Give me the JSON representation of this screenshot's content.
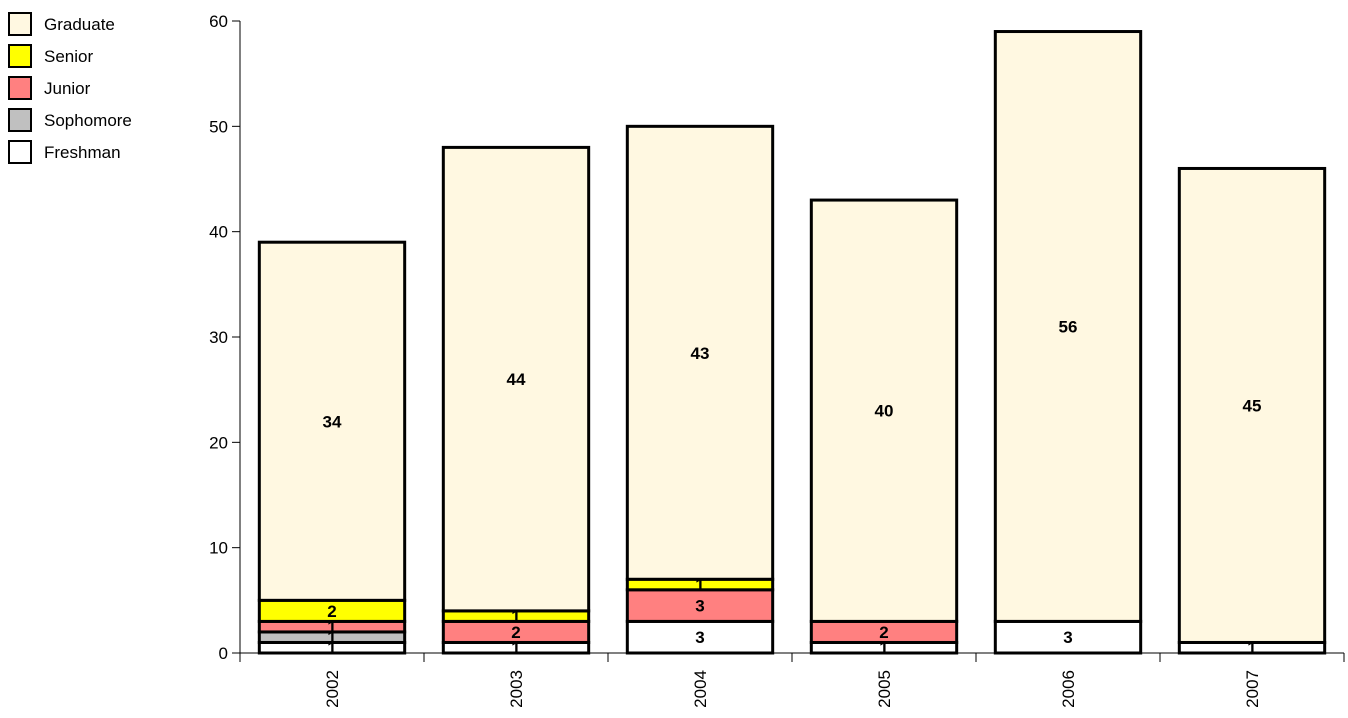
{
  "chart_data": {
    "type": "bar",
    "stacked": true,
    "categories": [
      "2002",
      "2003",
      "2004",
      "2005",
      "2006",
      "2007"
    ],
    "series": [
      {
        "name": "Freshman",
        "color": "#ffffff",
        "values": [
          1,
          1,
          3,
          1,
          3,
          1
        ],
        "labels": [
          "1",
          "1",
          "3",
          "1",
          "3",
          "1"
        ]
      },
      {
        "name": "Sophomore",
        "color": "#c0c0c0",
        "values": [
          1,
          0,
          0,
          0,
          0,
          0
        ],
        "labels": [
          "1",
          "",
          "",
          "",
          "",
          ""
        ]
      },
      {
        "name": "Junior",
        "color": "#ff8080",
        "values": [
          1,
          2,
          3,
          2,
          0,
          0
        ],
        "labels": [
          "1",
          "2",
          "3",
          "2",
          "",
          ""
        ]
      },
      {
        "name": "Senior",
        "color": "#ffff00",
        "values": [
          2,
          1,
          1,
          0,
          0,
          0
        ],
        "labels": [
          "2",
          "1",
          "1",
          "",
          "",
          ""
        ]
      },
      {
        "name": "Graduate",
        "color": "#fff8e1",
        "values": [
          34,
          44,
          43,
          40,
          56,
          45
        ],
        "labels": [
          "34",
          "44",
          "43",
          "40",
          "56",
          "45"
        ]
      }
    ],
    "legend_order": [
      "Graduate",
      "Senior",
      "Junior",
      "Sophomore",
      "Freshman"
    ],
    "legend_position": "top-left",
    "ylim": [
      0,
      60
    ],
    "yticks": [
      "0",
      "10",
      "20",
      "30",
      "40",
      "50",
      "60"
    ],
    "title": "",
    "xlabel": "",
    "ylabel": "",
    "grid": false
  }
}
